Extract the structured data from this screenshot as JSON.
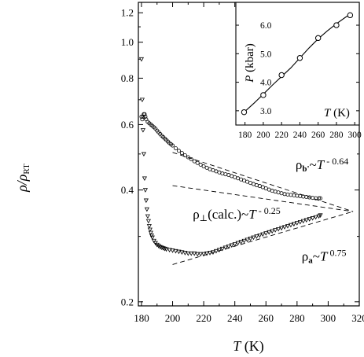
{
  "chart_data": [
    {
      "type": "scatter",
      "xlabel": {
        "var": "T",
        "unit": " (K)"
      },
      "ylabel": {
        "var": "ρ/ρ",
        "sub": "RT"
      },
      "yscale": "log",
      "xlim": [
        178,
        320
      ],
      "ylim": [
        0.195,
        1.28
      ],
      "xticks": [
        180,
        200,
        220,
        240,
        260,
        280,
        300,
        320
      ],
      "yticks": [
        0.2,
        0.4,
        0.6,
        0.8,
        1.0,
        1.2
      ],
      "ytick_labels": [
        "0.2",
        "0.4",
        "0.6",
        "0.8",
        "1.0",
        "1.2"
      ],
      "grid": false,
      "series": [
        {
          "name": "ρ_b'",
          "marker": "circle",
          "x": [
            180,
            180.5,
            181,
            181.5,
            182,
            182.5,
            183,
            184,
            185,
            186,
            187,
            188,
            189,
            190,
            191,
            192,
            193,
            194,
            195,
            196,
            197,
            198,
            199,
            200,
            202,
            204,
            206,
            208,
            210,
            212,
            214,
            216,
            218,
            220,
            222,
            224,
            226,
            228,
            230,
            232,
            234,
            236,
            238,
            240,
            242,
            244,
            246,
            248,
            250,
            252,
            254,
            256,
            258,
            260,
            262,
            264,
            266,
            268,
            270,
            272,
            274,
            276,
            278,
            280,
            282,
            284,
            286,
            288,
            290,
            292,
            294,
            295
          ],
          "y": [
            0.63,
            0.62,
            0.63,
            0.64,
            0.64,
            0.63,
            0.62,
            0.61,
            0.605,
            0.6,
            0.595,
            0.59,
            0.585,
            0.578,
            0.572,
            0.566,
            0.56,
            0.555,
            0.55,
            0.545,
            0.54,
            0.535,
            0.531,
            0.527,
            0.518,
            0.51,
            0.503,
            0.496,
            0.49,
            0.484,
            0.478,
            0.473,
            0.468,
            0.463,
            0.459,
            0.455,
            0.452,
            0.449,
            0.446,
            0.443,
            0.441,
            0.439,
            0.436,
            0.433,
            0.43,
            0.427,
            0.424,
            0.421,
            0.418,
            0.415,
            0.412,
            0.41,
            0.407,
            0.404,
            0.401,
            0.398,
            0.396,
            0.394,
            0.392,
            0.39,
            0.389,
            0.388,
            0.387,
            0.386,
            0.385,
            0.384,
            0.383,
            0.382,
            0.381,
            0.38,
            0.38,
            0.38
          ]
        },
        {
          "name": "ρ_a",
          "marker": "triangle-down",
          "x": [
            180,
            180.5,
            181,
            181.5,
            182,
            182.5,
            183,
            183.5,
            184,
            184.5,
            185,
            185.5,
            186,
            186.5,
            187,
            188,
            189,
            190,
            191,
            192,
            193,
            194,
            195,
            196,
            198,
            200,
            202,
            204,
            206,
            208,
            210,
            212,
            214,
            216,
            218,
            220,
            222,
            224,
            226,
            228,
            230,
            232,
            234,
            236,
            238,
            240,
            242,
            244,
            246,
            248,
            250,
            252,
            254,
            256,
            258,
            260,
            262,
            264,
            266,
            268,
            270,
            272,
            274,
            276,
            278,
            280,
            282,
            284,
            286,
            288,
            290,
            292,
            294,
            295
          ],
          "y": [
            0.9,
            0.7,
            0.58,
            0.5,
            0.43,
            0.4,
            0.375,
            0.355,
            0.34,
            0.33,
            0.32,
            0.313,
            0.307,
            0.302,
            0.298,
            0.292,
            0.288,
            0.285,
            0.283,
            0.281,
            0.28,
            0.279,
            0.278,
            0.277,
            0.276,
            0.275,
            0.274,
            0.273,
            0.272,
            0.271,
            0.27,
            0.27,
            0.27,
            0.269,
            0.269,
            0.269,
            0.27,
            0.271,
            0.272,
            0.274,
            0.276,
            0.278,
            0.28,
            0.282,
            0.284,
            0.286,
            0.288,
            0.29,
            0.292,
            0.294,
            0.296,
            0.298,
            0.3,
            0.302,
            0.304,
            0.306,
            0.308,
            0.31,
            0.312,
            0.314,
            0.316,
            0.318,
            0.32,
            0.322,
            0.324,
            0.326,
            0.328,
            0.33,
            0.332,
            0.334,
            0.336,
            0.338,
            0.34,
            0.342
          ]
        }
      ],
      "fits": [
        {
          "name": "ρ_b'~T^-0.64",
          "x": [
            200,
            316
          ],
          "y": [
            0.505,
            0.35
          ]
        },
        {
          "name": "ρ_⊥(calc.)~T^-0.25",
          "x": [
            200,
            316
          ],
          "y": [
            0.411,
            0.35
          ]
        },
        {
          "name": "ρ_a~T^0.75",
          "x": [
            200,
            316
          ],
          "y": [
            0.252,
            0.35
          ]
        }
      ],
      "annotations": [
        {
          "id": "rho-b",
          "parts": [
            {
              "t": "ρ"
            },
            {
              "t": "b'",
              "sub": true,
              "bold": true
            },
            {
              "t": "~T"
            },
            {
              "t": " - 0.64",
              "sup": true
            }
          ],
          "at": [
            279,
            0.455
          ]
        },
        {
          "id": "rho-perp",
          "parts": [
            {
              "t": "ρ"
            },
            {
              "t": "⊥",
              "sub": true
            },
            {
              "t": "(calc.)~T"
            },
            {
              "t": " - 0.25",
              "sup": true
            }
          ],
          "at": [
            213,
            0.335
          ]
        },
        {
          "id": "rho-a",
          "parts": [
            {
              "t": "ρ"
            },
            {
              "t": "a",
              "sub": true,
              "bold": true
            },
            {
              "t": "~T"
            },
            {
              "t": " 0.75",
              "sup": true
            }
          ],
          "at": [
            283,
            0.258
          ]
        }
      ]
    },
    {
      "type": "line",
      "inset": true,
      "xlabel": {
        "var": "T",
        "unit": " (K)"
      },
      "ylabel": {
        "var": "P",
        "unit": " (kbar)"
      },
      "xlim": [
        170,
        305
      ],
      "ylim": [
        2.5,
        6.8
      ],
      "xticks": [
        180,
        200,
        220,
        240,
        260,
        280,
        300
      ],
      "yticks": [
        3.0,
        4.0,
        5.0,
        6.0
      ],
      "ytick_labels": [
        "3.0",
        "4.0",
        "5.0",
        "6.0"
      ],
      "series": [
        {
          "name": "P",
          "marker": "circle",
          "x": [
            179,
            200,
            220,
            240,
            260,
            280,
            295
          ],
          "y": [
            2.95,
            3.55,
            4.25,
            4.85,
            5.55,
            6.0,
            6.35
          ]
        }
      ],
      "curve": {
        "x": [
          179,
          190,
          200,
          210,
          220,
          230,
          240,
          250,
          260,
          270,
          280,
          290,
          295
        ],
        "y": [
          2.95,
          3.27,
          3.58,
          3.9,
          4.2,
          4.5,
          4.85,
          5.2,
          5.52,
          5.8,
          6.05,
          6.28,
          6.38
        ]
      }
    }
  ]
}
